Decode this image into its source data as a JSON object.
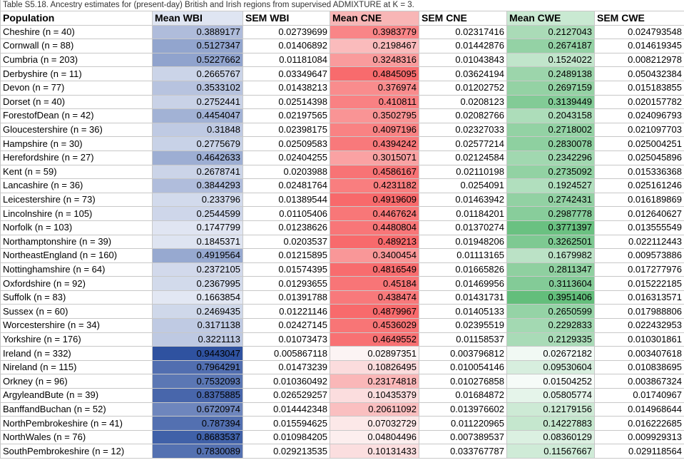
{
  "table": {
    "title": "Table S5.18. Ancestry estimates for (present-day) British and Irish regions from supervised ADMIXTURE at K = 3.",
    "columns": [
      "Population",
      "Mean WBI",
      "SEM WBI",
      "Mean CNE",
      "SEM CNE",
      "Mean CWE",
      "SEM CWE"
    ],
    "rows": [
      [
        "Cheshire (n = 40)",
        "0.3889177",
        "0.02739699",
        "0.3983779",
        "0.02317416",
        "0.2127043",
        "0.024793548"
      ],
      [
        "Cornwall (n = 88)",
        "0.5127347",
        "0.01406892",
        "0.2198467",
        "0.01442876",
        "0.2674187",
        "0.014619345"
      ],
      [
        "Cumbria (n = 203)",
        "0.5227662",
        "0.01181084",
        "0.3248316",
        "0.01043843",
        "0.1524022",
        "0.008212978"
      ],
      [
        "Derbyshire (n = 11)",
        "0.2665767",
        "0.03349647",
        "0.4845095",
        "0.03624194",
        "0.2489138",
        "0.050432384"
      ],
      [
        "Devon (n = 77)",
        "0.3533102",
        "0.01438213",
        "0.376974",
        "0.01202752",
        "0.2697159",
        "0.015183855"
      ],
      [
        "Dorset (n = 40)",
        "0.2752441",
        "0.02514398",
        "0.410811",
        "0.0208123",
        "0.3139449",
        "0.020157782"
      ],
      [
        "ForestofDean (n = 42)",
        "0.4454047",
        "0.02197565",
        "0.3502795",
        "0.02082766",
        "0.2043158",
        "0.024096793"
      ],
      [
        "Gloucestershire (n = 36)",
        "0.31848",
        "0.02398175",
        "0.4097196",
        "0.02327033",
        "0.2718002",
        "0.021097703"
      ],
      [
        "Hampshire (n = 30)",
        "0.2775679",
        "0.02509583",
        "0.4394242",
        "0.02577214",
        "0.2830078",
        "0.025004251"
      ],
      [
        "Herefordshire (n = 27)",
        "0.4642633",
        "0.02404255",
        "0.3015071",
        "0.02124584",
        "0.2342296",
        "0.025045896"
      ],
      [
        "Kent (n = 59)",
        "0.2678741",
        "0.0203988",
        "0.4586167",
        "0.02110198",
        "0.2735092",
        "0.015336368"
      ],
      [
        "Lancashire (n = 36)",
        "0.3844293",
        "0.02481764",
        "0.4231182",
        "0.0254091",
        "0.1924527",
        "0.025161246"
      ],
      [
        "Leicestershire (n = 73)",
        "0.233796",
        "0.01389544",
        "0.4919609",
        "0.01463942",
        "0.2742431",
        "0.016189869"
      ],
      [
        "Lincolnshire (n = 105)",
        "0.2544599",
        "0.01105406",
        "0.4467624",
        "0.01184201",
        "0.2987778",
        "0.012640627"
      ],
      [
        "Norfolk (n = 103)",
        "0.1747799",
        "0.01238626",
        "0.4480804",
        "0.01370274",
        "0.3771397",
        "0.013555549"
      ],
      [
        "Northamptonshire (n = 39)",
        "0.1845371",
        "0.0203537",
        "0.489213",
        "0.01948206",
        "0.3262501",
        "0.022112443"
      ],
      [
        "NortheastEngland (n = 160)",
        "0.4919564",
        "0.01215895",
        "0.3400454",
        "0.01113165",
        "0.1679982",
        "0.009573886"
      ],
      [
        "Nottinghamshire (n = 64)",
        "0.2372105",
        "0.01574395",
        "0.4816549",
        "0.01665826",
        "0.2811347",
        "0.017277976"
      ],
      [
        "Oxfordshire (n = 92)",
        "0.2367995",
        "0.01293655",
        "0.45184",
        "0.01469956",
        "0.3113604",
        "0.015222185"
      ],
      [
        "Suffolk (n = 83)",
        "0.1663854",
        "0.01391788",
        "0.438474",
        "0.01431731",
        "0.3951406",
        "0.016313571"
      ],
      [
        "Sussex (n = 60)",
        "0.2469435",
        "0.01221146",
        "0.4879967",
        "0.01405133",
        "0.2650599",
        "0.017988806"
      ],
      [
        "Worcestershire (n = 34)",
        "0.3171138",
        "0.02427145",
        "0.4536029",
        "0.02395519",
        "0.2292833",
        "0.022432953"
      ],
      [
        "Yorkshire (n = 176)",
        "0.3221113",
        "0.01073473",
        "0.4649552",
        "0.01158537",
        "0.2129335",
        "0.010301861"
      ],
      [
        "Ireland (n = 332)",
        "0.9443047",
        "0.005867118",
        "0.02897351",
        "0.003796812",
        "0.02672182",
        "0.003407618"
      ],
      [
        "Nireland (n = 115)",
        "0.7964291",
        "0.01473239",
        "0.10826495",
        "0.010054146",
        "0.09530604",
        "0.010838695"
      ],
      [
        "Orkney (n = 96)",
        "0.7532093",
        "0.010360492",
        "0.23174818",
        "0.010276858",
        "0.01504252",
        "0.003867324"
      ],
      [
        "ArgyleandBute (n = 39)",
        "0.8375885",
        "0.026529257",
        "0.10435379",
        "0.01684872",
        "0.05805774",
        "0.01740967"
      ],
      [
        "BanffandBuchan (n = 52)",
        "0.6720974",
        "0.014442348",
        "0.20611092",
        "0.013976602",
        "0.12179156",
        "0.014968644"
      ],
      [
        "NorthPembrokeshire (n = 41)",
        "0.787394",
        "0.015594625",
        "0.07032729",
        "0.011220965",
        "0.14227883",
        "0.016222685"
      ],
      [
        "NorthWales (n = 76)",
        "0.8683537",
        "0.010984205",
        "0.04804496",
        "0.007389537",
        "0.08360129",
        "0.009929313"
      ],
      [
        "SouthPembrokeshire (n = 12)",
        "0.7830089",
        "0.029213535",
        "0.10131433",
        "0.033767787",
        "0.11567667",
        "0.029118564"
      ]
    ]
  }
}
